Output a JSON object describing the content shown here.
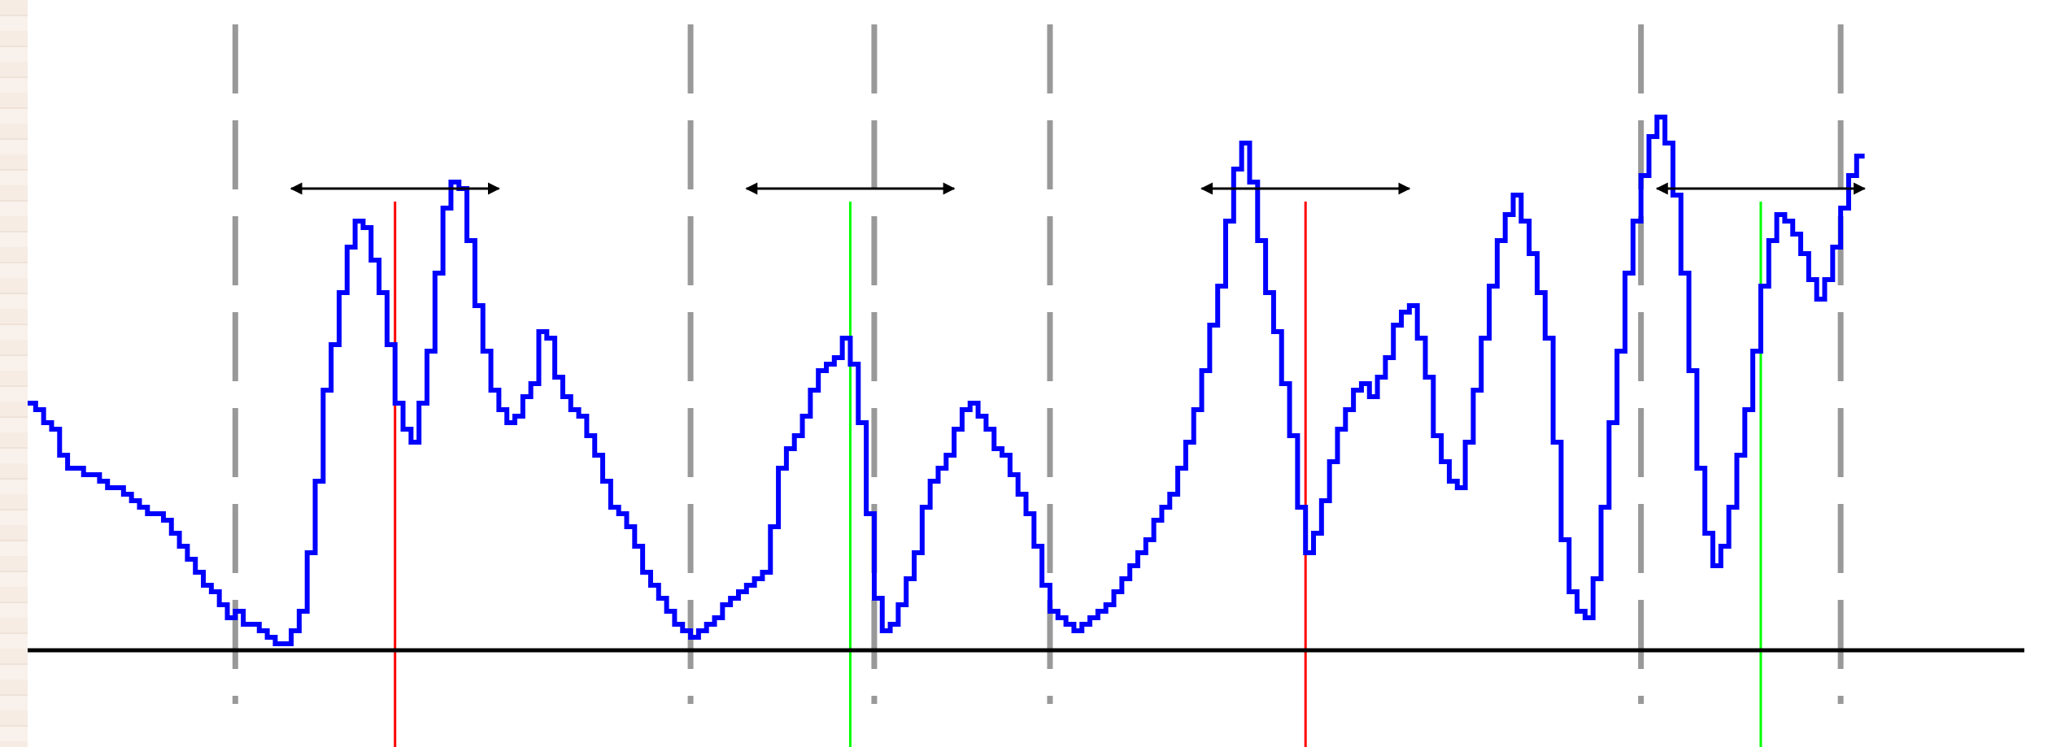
{
  "chart_data": {
    "type": "line",
    "title": "",
    "xlabel": "",
    "ylabel": "",
    "xlim": [
      0,
      250
    ],
    "ylim": [
      -0.1,
      1.0
    ],
    "baseline": 0,
    "series": [
      {
        "color": "#0000ff",
        "values": [
          0.38,
          0.37,
          0.35,
          0.34,
          0.3,
          0.28,
          0.28,
          0.27,
          0.27,
          0.26,
          0.25,
          0.25,
          0.24,
          0.23,
          0.22,
          0.21,
          0.21,
          0.2,
          0.18,
          0.16,
          0.14,
          0.12,
          0.1,
          0.09,
          0.07,
          0.05,
          0.06,
          0.04,
          0.04,
          0.03,
          0.02,
          0.01,
          0.01,
          0.03,
          0.06,
          0.15,
          0.26,
          0.4,
          0.47,
          0.55,
          0.62,
          0.66,
          0.65,
          0.6,
          0.55,
          0.47,
          0.38,
          0.34,
          0.32,
          0.38,
          0.46,
          0.58,
          0.68,
          0.72,
          0.71,
          0.63,
          0.53,
          0.46,
          0.4,
          0.37,
          0.35,
          0.36,
          0.39,
          0.41,
          0.49,
          0.48,
          0.42,
          0.39,
          0.37,
          0.36,
          0.33,
          0.3,
          0.26,
          0.22,
          0.21,
          0.19,
          0.16,
          0.12,
          0.1,
          0.08,
          0.06,
          0.04,
          0.03,
          0.02,
          0.03,
          0.04,
          0.05,
          0.07,
          0.08,
          0.09,
          0.1,
          0.11,
          0.12,
          0.19,
          0.28,
          0.31,
          0.33,
          0.36,
          0.4,
          0.43,
          0.44,
          0.45,
          0.48,
          0.44,
          0.35,
          0.21,
          0.08,
          0.03,
          0.04,
          0.07,
          0.11,
          0.15,
          0.22,
          0.26,
          0.28,
          0.3,
          0.34,
          0.37,
          0.38,
          0.36,
          0.34,
          0.31,
          0.3,
          0.27,
          0.24,
          0.21,
          0.16,
          0.1,
          0.06,
          0.05,
          0.04,
          0.03,
          0.04,
          0.05,
          0.06,
          0.07,
          0.09,
          0.11,
          0.13,
          0.15,
          0.17,
          0.2,
          0.22,
          0.24,
          0.28,
          0.32,
          0.37,
          0.43,
          0.5,
          0.56,
          0.66,
          0.74,
          0.78,
          0.72,
          0.63,
          0.55,
          0.49,
          0.41,
          0.33,
          0.22,
          0.15,
          0.18,
          0.23,
          0.29,
          0.34,
          0.37,
          0.4,
          0.41,
          0.39,
          0.42,
          0.45,
          0.5,
          0.52,
          0.53,
          0.48,
          0.42,
          0.33,
          0.29,
          0.26,
          0.25,
          0.32,
          0.4,
          0.48,
          0.56,
          0.63,
          0.67,
          0.7,
          0.66,
          0.61,
          0.55,
          0.48,
          0.32,
          0.17,
          0.09,
          0.06,
          0.05,
          0.11,
          0.22,
          0.35,
          0.46,
          0.58,
          0.66,
          0.73,
          0.79,
          0.82,
          0.78,
          0.7,
          0.58,
          0.43,
          0.28,
          0.18,
          0.13,
          0.16,
          0.22,
          0.3,
          0.37,
          0.46,
          0.56,
          0.63,
          0.67,
          0.66,
          0.64,
          0.61,
          0.57,
          0.54,
          0.57,
          0.62,
          0.68,
          0.73,
          0.76
        ]
      }
    ],
    "vertical_markers": [
      {
        "x": 26,
        "color": "#999999",
        "style": "dashed"
      },
      {
        "x": 83,
        "color": "#999999",
        "style": "dashed"
      },
      {
        "x": 106,
        "color": "#999999",
        "style": "dashed"
      },
      {
        "x": 128,
        "color": "#999999",
        "style": "dashed"
      },
      {
        "x": 202,
        "color": "#999999",
        "style": "dashed"
      },
      {
        "x": 227,
        "color": "#999999",
        "style": "dashed"
      },
      {
        "x": 46,
        "color": "#ff0000",
        "style": "solid"
      },
      {
        "x": 103,
        "color": "#00ff00",
        "style": "solid"
      },
      {
        "x": 160,
        "color": "#ff0000",
        "style": "solid"
      },
      {
        "x": 217,
        "color": "#00ff00",
        "style": "solid"
      }
    ],
    "range_arrows": [
      {
        "x0": 33,
        "x1": 59,
        "y": 0.71
      },
      {
        "x0": 90,
        "x1": 116,
        "y": 0.71
      },
      {
        "x0": 147,
        "x1": 173,
        "y": 0.71
      },
      {
        "x0": 204,
        "x1": 230,
        "y": 0.71
      }
    ],
    "colors": {
      "series": "#0000ff",
      "baseline": "#000000",
      "dashed_marker": "#999999",
      "red_marker": "#ff0000",
      "green_marker": "#00ff00",
      "arrow": "#000000"
    }
  }
}
